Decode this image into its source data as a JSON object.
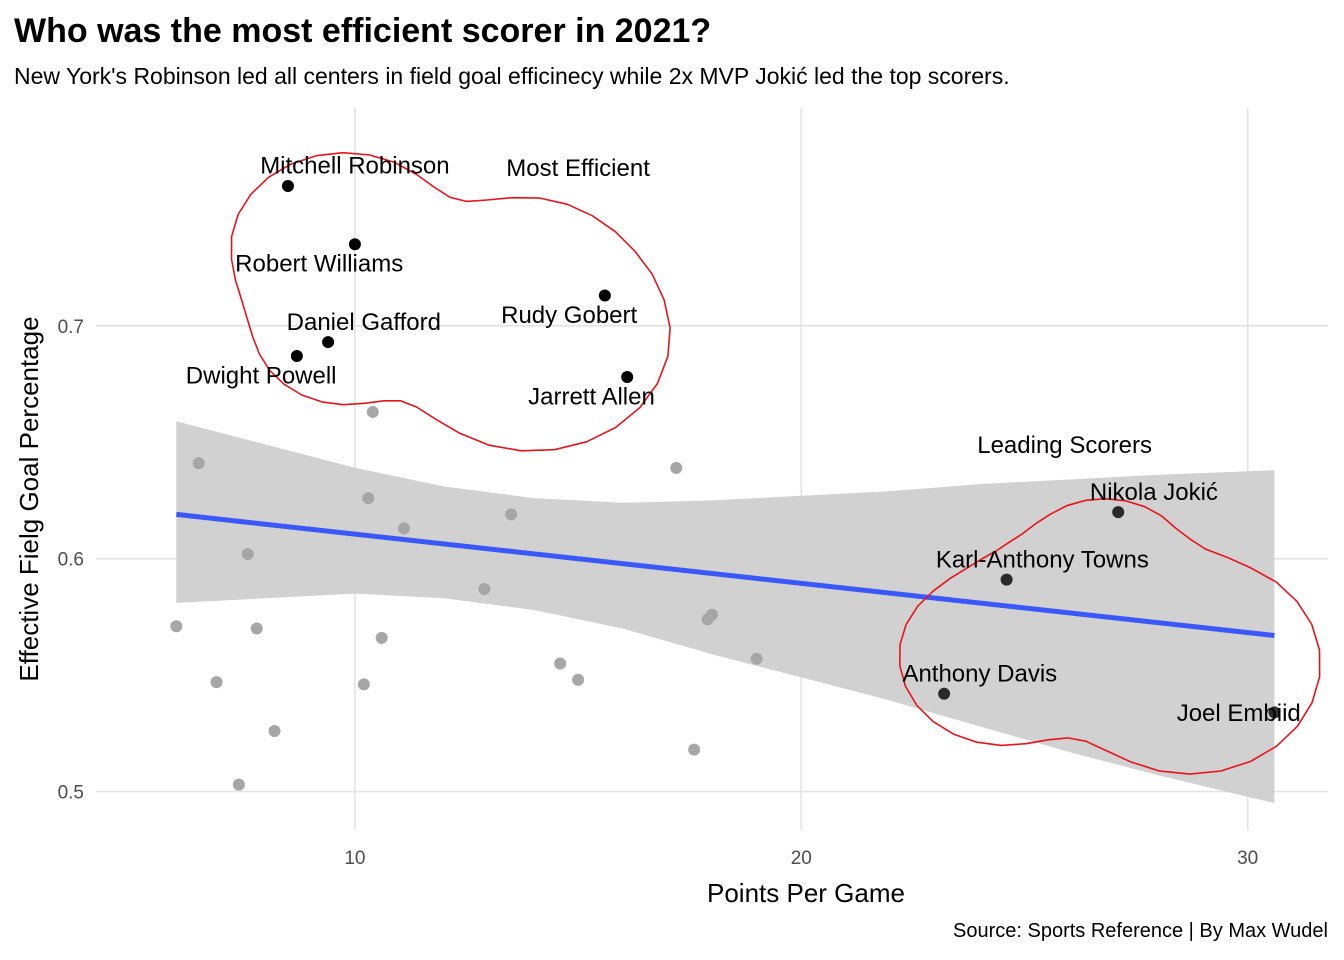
{
  "title": "Who was the most efficient scorer in 2021?",
  "subtitle": "New York's Robinson led all centers in field goal efficinecy while 2x MVP Jokić led the top scorers.",
  "caption": "Source: Sports Reference | By Max Wudel",
  "colors": {
    "highlight_point": "#000000",
    "other_point": "#a6a6a6",
    "trend_line": "#3a57f7",
    "confidence_band": "#cfcfcf",
    "grid": "#e3e3e3",
    "encircle": "#e8141b"
  },
  "chart_data": {
    "type": "scatter",
    "title": "Who was the most efficient scorer in 2021?",
    "subtitle": "New York's Robinson led all centers in field goal efficinecy while 2x MVP Jokić led the top scorers.",
    "xlabel": "Points Per Game",
    "ylabel": "Effective Fielg Goal Percentage",
    "xlim": [
      4.2,
      31.8
    ],
    "ylim": [
      0.4835,
      0.7935
    ],
    "x_ticks": [
      10,
      20,
      30
    ],
    "x_tick_labels": [
      "10",
      "20",
      "30"
    ],
    "y_ticks": [
      0.5,
      0.6,
      0.7
    ],
    "y_tick_labels": [
      "0.5",
      "0.6",
      "0.7"
    ],
    "grid": true,
    "labeled_players": [
      {
        "name": "Mitchell Robinson",
        "x": 8.5,
        "y": 0.76,
        "label_dx": 1.5,
        "label_dy": 0.008
      },
      {
        "name": "Robert Williams",
        "x": 10.0,
        "y": 0.735,
        "label_dx": -0.8,
        "label_dy": -0.009
      },
      {
        "name": "Rudy Gobert",
        "x": 15.6,
        "y": 0.713,
        "label_dx": -0.8,
        "label_dy": -0.009
      },
      {
        "name": "Daniel Gafford",
        "x": 9.4,
        "y": 0.693,
        "label_dx": 0.8,
        "label_dy": 0.008
      },
      {
        "name": "Dwight Powell",
        "x": 8.7,
        "y": 0.687,
        "label_dx": -0.8,
        "label_dy": -0.009
      },
      {
        "name": "Jarrett Allen",
        "x": 16.1,
        "y": 0.678,
        "label_dx": -0.8,
        "label_dy": -0.009
      },
      {
        "name": "Nikola Jokić",
        "x": 27.1,
        "y": 0.62,
        "label_dx": 0.8,
        "label_dy": 0.008
      },
      {
        "name": "Karl-Anthony Towns",
        "x": 24.6,
        "y": 0.591,
        "label_dx": 0.8,
        "label_dy": 0.008
      },
      {
        "name": "Anthony Davis",
        "x": 23.2,
        "y": 0.542,
        "label_dx": 0.8,
        "label_dy": 0.008
      },
      {
        "name": "Joel Embiid",
        "x": 30.6,
        "y": 0.534,
        "label_dx": -0.8,
        "label_dy": -0.001
      }
    ],
    "other_players": [
      {
        "x": 6.0,
        "y": 0.571
      },
      {
        "x": 6.5,
        "y": 0.641
      },
      {
        "x": 6.9,
        "y": 0.547
      },
      {
        "x": 7.4,
        "y": 0.503
      },
      {
        "x": 7.6,
        "y": 0.602
      },
      {
        "x": 7.8,
        "y": 0.57
      },
      {
        "x": 8.2,
        "y": 0.526
      },
      {
        "x": 10.2,
        "y": 0.546
      },
      {
        "x": 10.3,
        "y": 0.626
      },
      {
        "x": 10.4,
        "y": 0.663
      },
      {
        "x": 10.6,
        "y": 0.566
      },
      {
        "x": 11.1,
        "y": 0.613
      },
      {
        "x": 12.9,
        "y": 0.587
      },
      {
        "x": 13.5,
        "y": 0.619
      },
      {
        "x": 14.6,
        "y": 0.555
      },
      {
        "x": 15.0,
        "y": 0.548
      },
      {
        "x": 17.2,
        "y": 0.639
      },
      {
        "x": 17.6,
        "y": 0.518
      },
      {
        "x": 17.9,
        "y": 0.574
      },
      {
        "x": 18.0,
        "y": 0.576
      },
      {
        "x": 19.0,
        "y": 0.557
      }
    ],
    "trend_line": {
      "x": [
        6.0,
        30.6
      ],
      "y": [
        0.619,
        0.567
      ]
    },
    "confidence_band": {
      "x": [
        6.0,
        8.0,
        10.0,
        12.0,
        14.0,
        16.0,
        18.0,
        20.0,
        22.0,
        24.0,
        26.0,
        28.0,
        30.6
      ],
      "upper": [
        0.659,
        0.649,
        0.639,
        0.631,
        0.626,
        0.624,
        0.625,
        0.627,
        0.629,
        0.632,
        0.634,
        0.636,
        0.638
      ],
      "lower": [
        0.581,
        0.583,
        0.585,
        0.583,
        0.578,
        0.57,
        0.559,
        0.549,
        0.539,
        0.528,
        0.517,
        0.507,
        0.495
      ]
    },
    "annotations": [
      {
        "text": "Most Efficient",
        "x": 15.0,
        "y": 0.767
      },
      {
        "text": "Leading Scorers",
        "x": 25.9,
        "y": 0.648
      }
    ],
    "groups": [
      {
        "name": "Most Efficient",
        "members": [
          "Mitchell Robinson",
          "Robert Williams",
          "Rudy Gobert",
          "Daniel Gafford",
          "Dwight Powell",
          "Jarrett Allen"
        ]
      },
      {
        "name": "Leading Scorers",
        "members": [
          "Nikola Jokić",
          "Karl-Anthony Towns",
          "Anthony Davis",
          "Joel Embiid"
        ]
      }
    ]
  }
}
